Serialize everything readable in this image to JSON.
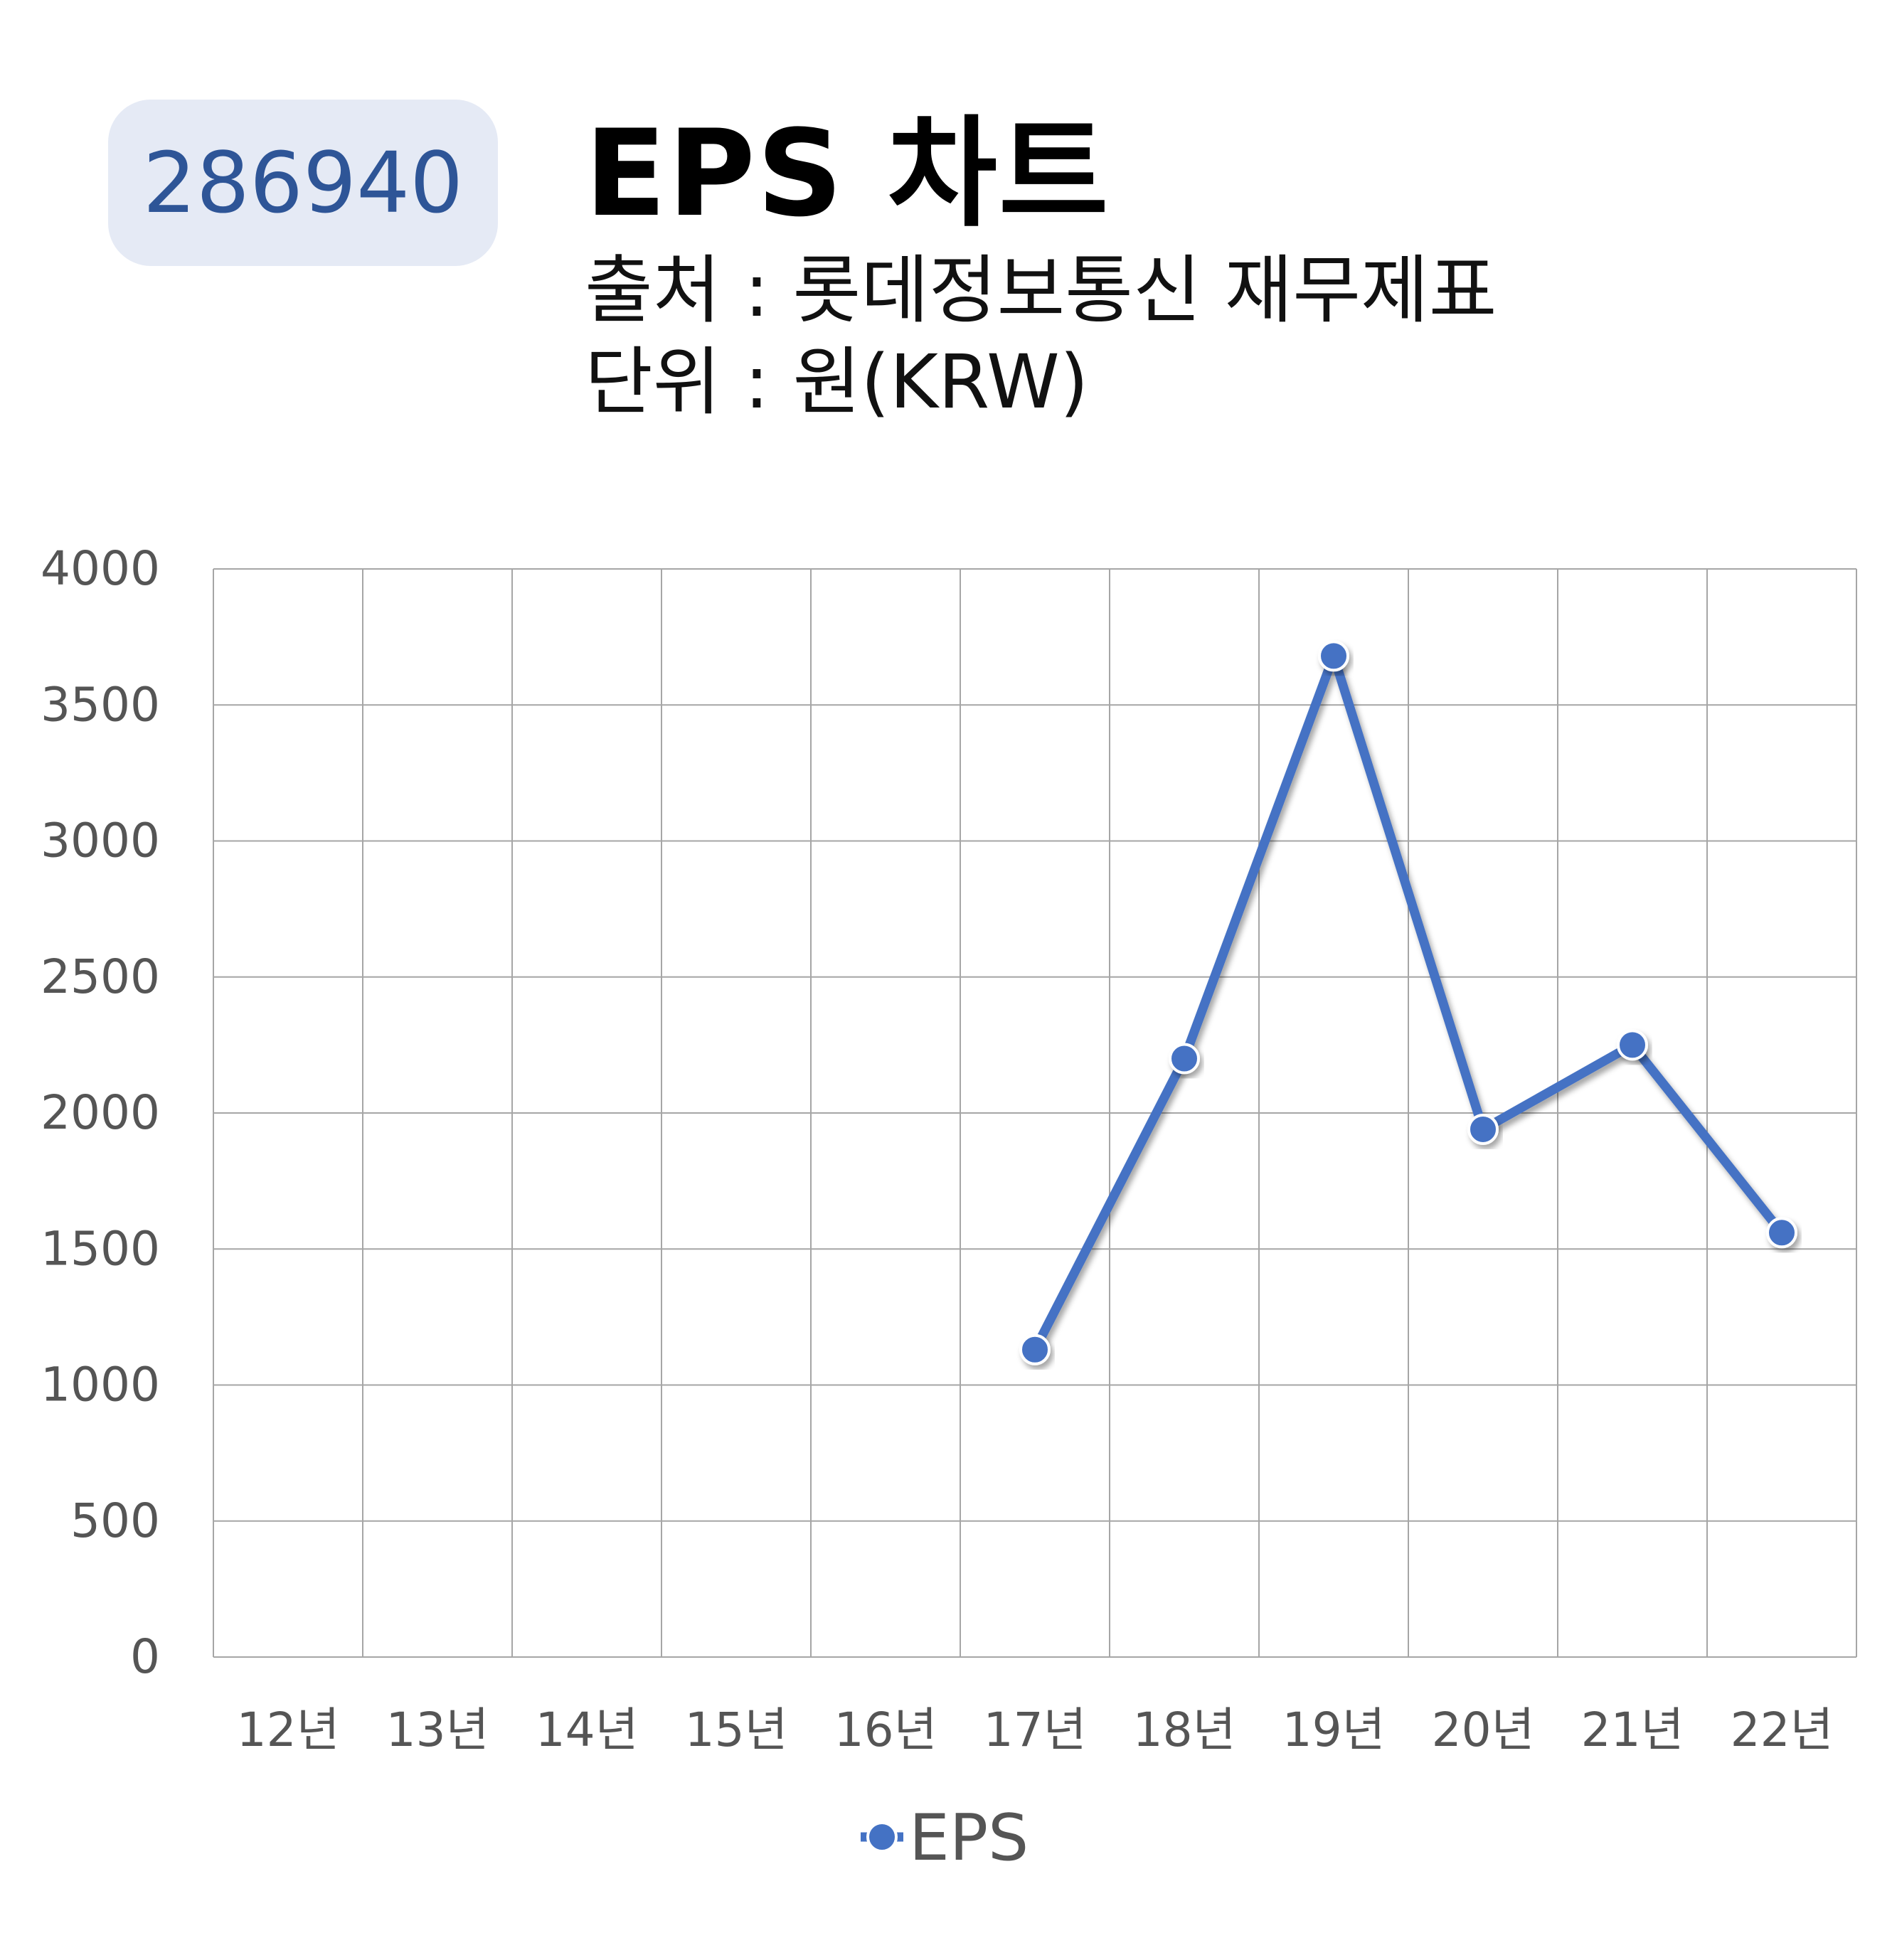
{
  "badge": {
    "code": "286940"
  },
  "header": {
    "title": "EPS 차트",
    "source_line": "출처 : 롯데정보통신 재무제표",
    "unit_line": "단위 : 원(KRW)"
  },
  "colors": {
    "series": "#4472c4",
    "badge_bg": "#e5eaf5",
    "badge_text": "#2e5597",
    "grid": "#a6a6a6"
  },
  "chart_data": {
    "type": "line",
    "categories": [
      "12년",
      "13년",
      "14년",
      "15년",
      "16년",
      "17년",
      "18년",
      "19년",
      "20년",
      "21년",
      "22년"
    ],
    "series": [
      {
        "name": "EPS",
        "values": [
          null,
          null,
          null,
          null,
          null,
          1130,
          2200,
          3680,
          1940,
          2250,
          1560
        ]
      }
    ],
    "ylim": [
      0,
      4000
    ],
    "yticks": [
      0,
      500,
      1000,
      1500,
      2000,
      2500,
      3000,
      3500,
      4000
    ],
    "grid": true,
    "legend": "bottom",
    "markers": true
  }
}
